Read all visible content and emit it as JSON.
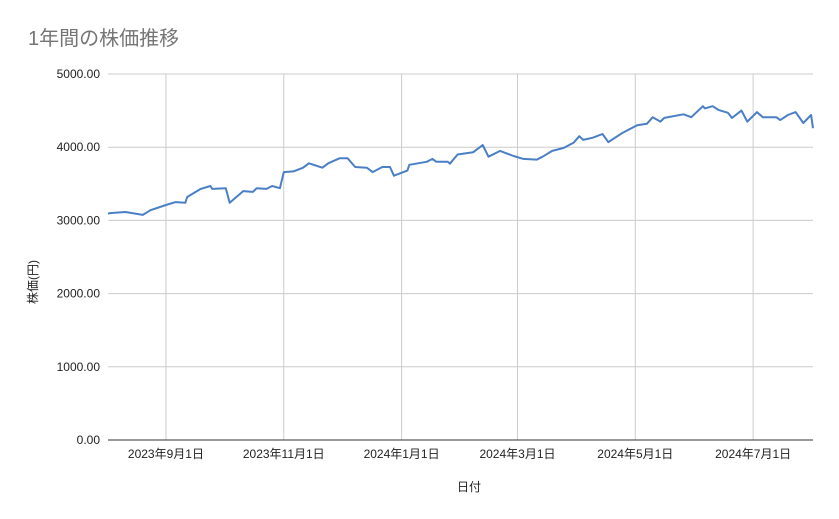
{
  "chart_data": {
    "type": "line",
    "title": "1年間の株価推移",
    "xlabel": "日付",
    "ylabel": "株価(円)",
    "ylim": [
      0,
      5000
    ],
    "xlim": [
      "2023-08-02",
      "2024-08-01"
    ],
    "y_ticks": [
      0,
      1000,
      2000,
      3000,
      4000,
      5000
    ],
    "y_tick_labels": [
      "0.00",
      "1000.00",
      "2000.00",
      "3000.00",
      "4000.00",
      "5000.00"
    ],
    "x_ticks": [
      "2023-09-01",
      "2023-11-01",
      "2024-01-01",
      "2024-03-01",
      "2024-05-01",
      "2024-07-01"
    ],
    "x_tick_labels": [
      "2023年9月1日",
      "2023年11月1日",
      "2024年1月1日",
      "2024年3月1日",
      "2024年5月1日",
      "2024年7月1日"
    ],
    "grid": true,
    "legend": "none",
    "series": [
      {
        "name": "株価",
        "color": "#4a7fc6",
        "points": [
          [
            "2023-08-02",
            3090
          ],
          [
            "2023-08-03",
            3100
          ],
          [
            "2023-08-11",
            3115
          ],
          [
            "2023-08-20",
            3075
          ],
          [
            "2023-08-24",
            3140
          ],
          [
            "2023-09-01",
            3210
          ],
          [
            "2023-09-06",
            3250
          ],
          [
            "2023-09-11",
            3240
          ],
          [
            "2023-09-12",
            3320
          ],
          [
            "2023-09-19",
            3430
          ],
          [
            "2023-09-24",
            3470
          ],
          [
            "2023-09-25",
            3430
          ],
          [
            "2023-10-02",
            3440
          ],
          [
            "2023-10-04",
            3240
          ],
          [
            "2023-10-11",
            3400
          ],
          [
            "2023-10-16",
            3390
          ],
          [
            "2023-10-18",
            3440
          ],
          [
            "2023-10-23",
            3430
          ],
          [
            "2023-10-26",
            3470
          ],
          [
            "2023-10-30",
            3440
          ],
          [
            "2023-11-01",
            3660
          ],
          [
            "2023-11-06",
            3670
          ],
          [
            "2023-11-11",
            3720
          ],
          [
            "2023-11-14",
            3780
          ],
          [
            "2023-11-21",
            3720
          ],
          [
            "2023-11-24",
            3780
          ],
          [
            "2023-11-30",
            3850
          ],
          [
            "2023-12-04",
            3850
          ],
          [
            "2023-12-08",
            3730
          ],
          [
            "2023-12-14",
            3720
          ],
          [
            "2023-12-17",
            3660
          ],
          [
            "2023-12-22",
            3730
          ],
          [
            "2023-12-26",
            3730
          ],
          [
            "2023-12-28",
            3610
          ],
          [
            "2024-01-04",
            3680
          ],
          [
            "2024-01-05",
            3760
          ],
          [
            "2024-01-14",
            3800
          ],
          [
            "2024-01-17",
            3840
          ],
          [
            "2024-01-19",
            3800
          ],
          [
            "2024-01-25",
            3800
          ],
          [
            "2024-01-26",
            3775
          ],
          [
            "2024-01-30",
            3900
          ],
          [
            "2024-02-07",
            3930
          ],
          [
            "2024-02-12",
            4030
          ],
          [
            "2024-02-15",
            3870
          ],
          [
            "2024-02-21",
            3950
          ],
          [
            "2024-02-28",
            3880
          ],
          [
            "2024-03-04",
            3840
          ],
          [
            "2024-03-11",
            3830
          ],
          [
            "2024-03-14",
            3870
          ],
          [
            "2024-03-19",
            3950
          ],
          [
            "2024-03-25",
            3990
          ],
          [
            "2024-03-30",
            4060
          ],
          [
            "2024-04-02",
            4150
          ],
          [
            "2024-04-04",
            4100
          ],
          [
            "2024-04-09",
            4130
          ],
          [
            "2024-04-14",
            4180
          ],
          [
            "2024-04-17",
            4070
          ],
          [
            "2024-04-24",
            4190
          ],
          [
            "2024-05-02",
            4300
          ],
          [
            "2024-05-07",
            4320
          ],
          [
            "2024-05-10",
            4410
          ],
          [
            "2024-05-14",
            4350
          ],
          [
            "2024-05-16",
            4400
          ],
          [
            "2024-05-26",
            4450
          ],
          [
            "2024-05-30",
            4410
          ],
          [
            "2024-06-05",
            4560
          ],
          [
            "2024-06-06",
            4530
          ],
          [
            "2024-06-10",
            4560
          ],
          [
            "2024-06-13",
            4510
          ],
          [
            "2024-06-18",
            4470
          ],
          [
            "2024-06-20",
            4400
          ],
          [
            "2024-06-25",
            4500
          ],
          [
            "2024-06-28",
            4350
          ],
          [
            "2024-07-03",
            4480
          ],
          [
            "2024-07-06",
            4410
          ],
          [
            "2024-07-13",
            4410
          ],
          [
            "2024-07-15",
            4370
          ],
          [
            "2024-07-19",
            4440
          ],
          [
            "2024-07-23",
            4480
          ],
          [
            "2024-07-27",
            4330
          ],
          [
            "2024-07-31",
            4440
          ],
          [
            "2024-08-01",
            4260
          ]
        ]
      }
    ]
  }
}
